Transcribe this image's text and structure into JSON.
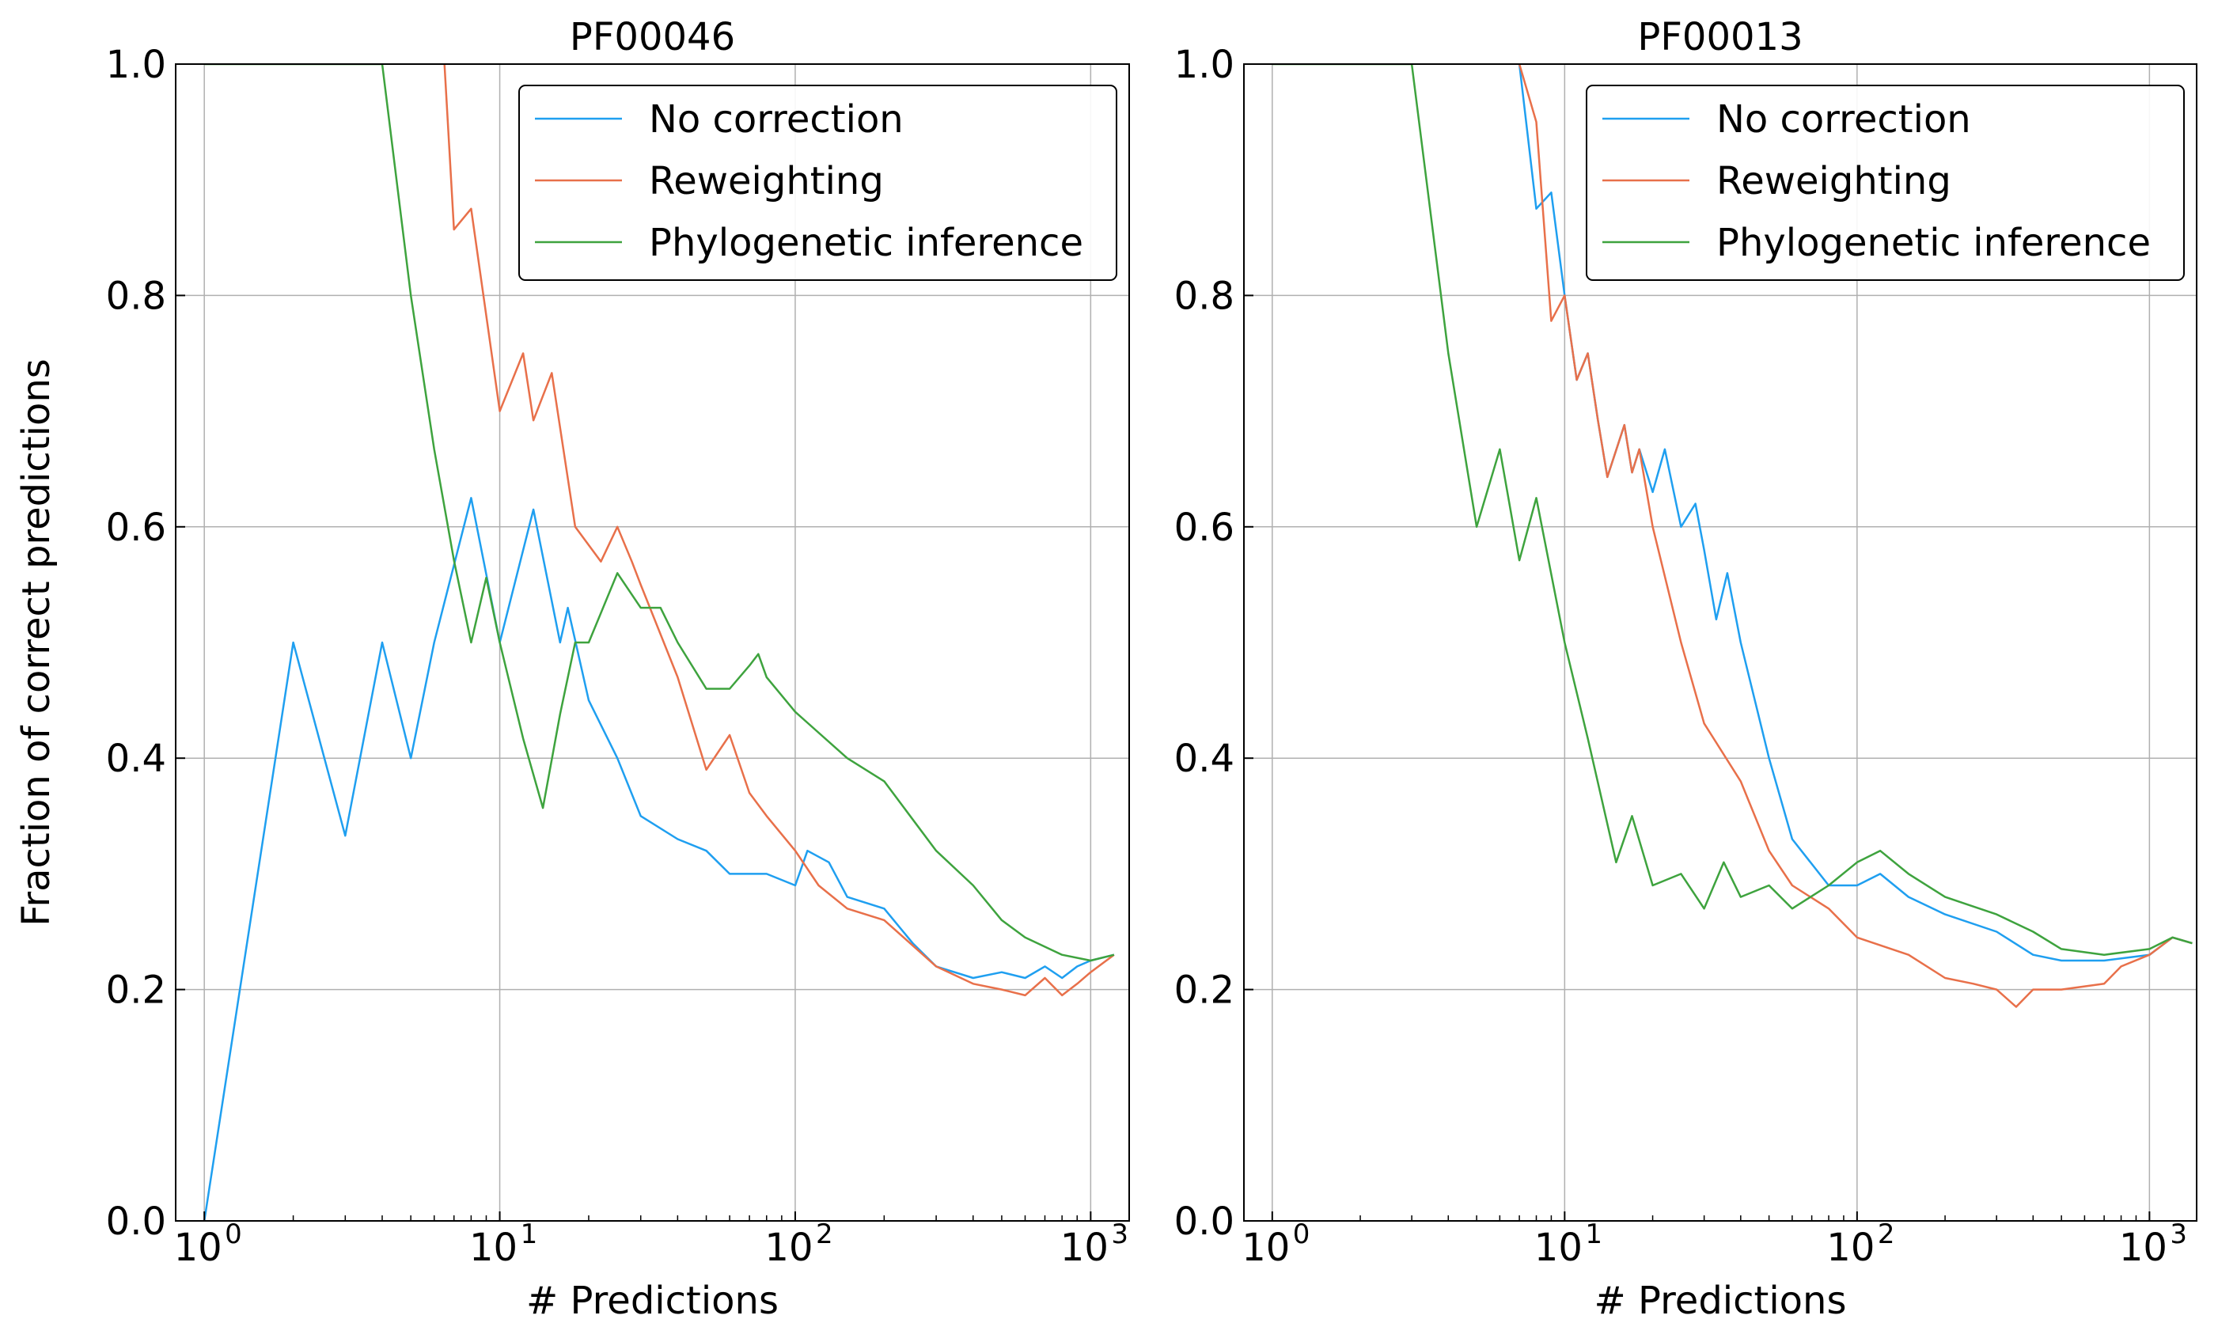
{
  "chart_data": [
    {
      "type": "line",
      "title": "PF00046",
      "xlabel": "# Predictions",
      "ylabel": "Fraction of correct predictions",
      "xscale": "log",
      "xlim": [
        0.8,
        1350
      ],
      "ylim": [
        0.0,
        1.0
      ],
      "grid": true,
      "legend": "top-right",
      "x_ticks": [
        {
          "base": "10",
          "exp": "0"
        },
        {
          "base": "10",
          "exp": "1"
        },
        {
          "base": "10",
          "exp": "2"
        },
        {
          "base": "10",
          "exp": "3"
        }
      ],
      "y_ticks": [
        "0.0",
        "0.2",
        "0.4",
        "0.6",
        "0.8",
        "1.0"
      ],
      "series": [
        {
          "name": "No correction",
          "color": "#1f9ff0",
          "points": [
            [
              1,
              0
            ],
            [
              2,
              0.5
            ],
            [
              3,
              0.333
            ],
            [
              4,
              0.5
            ],
            [
              5,
              0.4
            ],
            [
              6,
              0.5
            ],
            [
              8,
              0.625
            ],
            [
              10,
              0.5
            ],
            [
              13,
              0.615
            ],
            [
              16,
              0.5
            ],
            [
              17,
              0.53
            ],
            [
              20,
              0.45
            ],
            [
              25,
              0.4
            ],
            [
              30,
              0.35
            ],
            [
              40,
              0.33
            ],
            [
              50,
              0.32
            ],
            [
              60,
              0.3
            ],
            [
              80,
              0.3
            ],
            [
              100,
              0.29
            ],
            [
              110,
              0.32
            ],
            [
              130,
              0.31
            ],
            [
              150,
              0.28
            ],
            [
              200,
              0.27
            ],
            [
              250,
              0.24
            ],
            [
              300,
              0.22
            ],
            [
              400,
              0.21
            ],
            [
              500,
              0.215
            ],
            [
              600,
              0.21
            ],
            [
              700,
              0.22
            ],
            [
              800,
              0.21
            ],
            [
              900,
              0.22
            ],
            [
              1000,
              0.225
            ],
            [
              1200,
              0.23
            ]
          ]
        },
        {
          "name": "Reweighting",
          "color": "#e8704a",
          "points": [
            [
              6.5,
              1.0
            ],
            [
              7,
              0.857
            ],
            [
              8,
              0.875
            ],
            [
              10,
              0.7
            ],
            [
              12,
              0.75
            ],
            [
              13,
              0.692
            ],
            [
              15,
              0.733
            ],
            [
              18,
              0.6
            ],
            [
              22,
              0.57
            ],
            [
              25,
              0.6
            ],
            [
              28,
              0.57
            ],
            [
              30,
              0.55
            ],
            [
              40,
              0.47
            ],
            [
              50,
              0.39
            ],
            [
              60,
              0.42
            ],
            [
              70,
              0.37
            ],
            [
              80,
              0.35
            ],
            [
              100,
              0.32
            ],
            [
              120,
              0.29
            ],
            [
              150,
              0.27
            ],
            [
              200,
              0.26
            ],
            [
              300,
              0.22
            ],
            [
              400,
              0.205
            ],
            [
              500,
              0.2
            ],
            [
              600,
              0.195
            ],
            [
              700,
              0.21
            ],
            [
              800,
              0.195
            ],
            [
              900,
              0.205
            ],
            [
              1000,
              0.215
            ],
            [
              1200,
              0.23
            ]
          ]
        },
        {
          "name": "Phylogenetic inference",
          "color": "#3ea33e",
          "points": [
            [
              1,
              1.0
            ],
            [
              4,
              1.0
            ],
            [
              5,
              0.8
            ],
            [
              6,
              0.667
            ],
            [
              7,
              0.571
            ],
            [
              8,
              0.5
            ],
            [
              9,
              0.556
            ],
            [
              10,
              0.5
            ],
            [
              12,
              0.417
            ],
            [
              14,
              0.357
            ],
            [
              16,
              0.438
            ],
            [
              18,
              0.5
            ],
            [
              20,
              0.5
            ],
            [
              25,
              0.56
            ],
            [
              30,
              0.53
            ],
            [
              35,
              0.53
            ],
            [
              40,
              0.5
            ],
            [
              50,
              0.46
            ],
            [
              60,
              0.46
            ],
            [
              70,
              0.48
            ],
            [
              75,
              0.49
            ],
            [
              80,
              0.47
            ],
            [
              100,
              0.44
            ],
            [
              150,
              0.4
            ],
            [
              200,
              0.38
            ],
            [
              300,
              0.32
            ],
            [
              400,
              0.29
            ],
            [
              500,
              0.26
            ],
            [
              600,
              0.245
            ],
            [
              800,
              0.23
            ],
            [
              1000,
              0.225
            ],
            [
              1200,
              0.23
            ]
          ]
        }
      ]
    },
    {
      "type": "line",
      "title": "PF00013",
      "xlabel": "# Predictions",
      "ylabel": "",
      "xscale": "log",
      "xlim": [
        0.8,
        1450
      ],
      "ylim": [
        0.0,
        1.0
      ],
      "grid": true,
      "legend": "top-right",
      "x_ticks": [
        {
          "base": "10",
          "exp": "0"
        },
        {
          "base": "10",
          "exp": "1"
        },
        {
          "base": "10",
          "exp": "2"
        },
        {
          "base": "10",
          "exp": "3"
        }
      ],
      "y_ticks": [
        "0.0",
        "0.2",
        "0.4",
        "0.6",
        "0.8",
        "1.0"
      ],
      "series": [
        {
          "name": "No correction",
          "color": "#1f9ff0",
          "points": [
            [
              7,
              1.0
            ],
            [
              8,
              0.875
            ],
            [
              9,
              0.889
            ],
            [
              10,
              0.8
            ],
            [
              11,
              0.727
            ],
            [
              12,
              0.75
            ],
            [
              13,
              0.692
            ],
            [
              14,
              0.643
            ],
            [
              16,
              0.688
            ],
            [
              17,
              0.647
            ],
            [
              18,
              0.667
            ],
            [
              20,
              0.63
            ],
            [
              22,
              0.667
            ],
            [
              25,
              0.6
            ],
            [
              28,
              0.62
            ],
            [
              30,
              0.58
            ],
            [
              33,
              0.52
            ],
            [
              36,
              0.56
            ],
            [
              40,
              0.5
            ],
            [
              50,
              0.4
            ],
            [
              60,
              0.33
            ],
            [
              80,
              0.29
            ],
            [
              100,
              0.29
            ],
            [
              120,
              0.3
            ],
            [
              150,
              0.28
            ],
            [
              200,
              0.265
            ],
            [
              300,
              0.25
            ],
            [
              400,
              0.23
            ],
            [
              500,
              0.225
            ],
            [
              700,
              0.225
            ],
            [
              1000,
              0.23
            ],
            [
              1200,
              0.245
            ],
            [
              1400,
              0.24
            ]
          ]
        },
        {
          "name": "Reweighting",
          "color": "#e8704a",
          "points": [
            [
              7,
              1.0
            ],
            [
              8,
              0.95
            ],
            [
              9,
              0.778
            ],
            [
              10,
              0.8
            ],
            [
              11,
              0.727
            ],
            [
              12,
              0.75
            ],
            [
              13,
              0.692
            ],
            [
              14,
              0.643
            ],
            [
              16,
              0.688
            ],
            [
              17,
              0.647
            ],
            [
              18,
              0.667
            ],
            [
              20,
              0.6
            ],
            [
              25,
              0.5
            ],
            [
              30,
              0.43
            ],
            [
              40,
              0.38
            ],
            [
              50,
              0.32
            ],
            [
              60,
              0.29
            ],
            [
              80,
              0.27
            ],
            [
              100,
              0.245
            ],
            [
              150,
              0.23
            ],
            [
              200,
              0.21
            ],
            [
              250,
              0.205
            ],
            [
              300,
              0.2
            ],
            [
              350,
              0.185
            ],
            [
              400,
              0.2
            ],
            [
              500,
              0.2
            ],
            [
              700,
              0.205
            ],
            [
              800,
              0.22
            ],
            [
              1000,
              0.23
            ],
            [
              1200,
              0.245
            ],
            [
              1400,
              0.24
            ]
          ]
        },
        {
          "name": "Phylogenetic inference",
          "color": "#3ea33e",
          "points": [
            [
              1,
              1.0
            ],
            [
              3,
              1.0
            ],
            [
              4,
              0.75
            ],
            [
              5,
              0.6
            ],
            [
              6,
              0.667
            ],
            [
              7,
              0.571
            ],
            [
              8,
              0.625
            ],
            [
              10,
              0.5
            ],
            [
              12,
              0.417
            ],
            [
              15,
              0.31
            ],
            [
              17,
              0.35
            ],
            [
              20,
              0.29
            ],
            [
              25,
              0.3
            ],
            [
              30,
              0.27
            ],
            [
              35,
              0.31
            ],
            [
              40,
              0.28
            ],
            [
              50,
              0.29
            ],
            [
              60,
              0.27
            ],
            [
              80,
              0.29
            ],
            [
              100,
              0.31
            ],
            [
              120,
              0.32
            ],
            [
              150,
              0.3
            ],
            [
              200,
              0.28
            ],
            [
              300,
              0.265
            ],
            [
              400,
              0.25
            ],
            [
              500,
              0.235
            ],
            [
              700,
              0.23
            ],
            [
              1000,
              0.235
            ],
            [
              1200,
              0.245
            ],
            [
              1400,
              0.24
            ]
          ]
        }
      ]
    }
  ]
}
